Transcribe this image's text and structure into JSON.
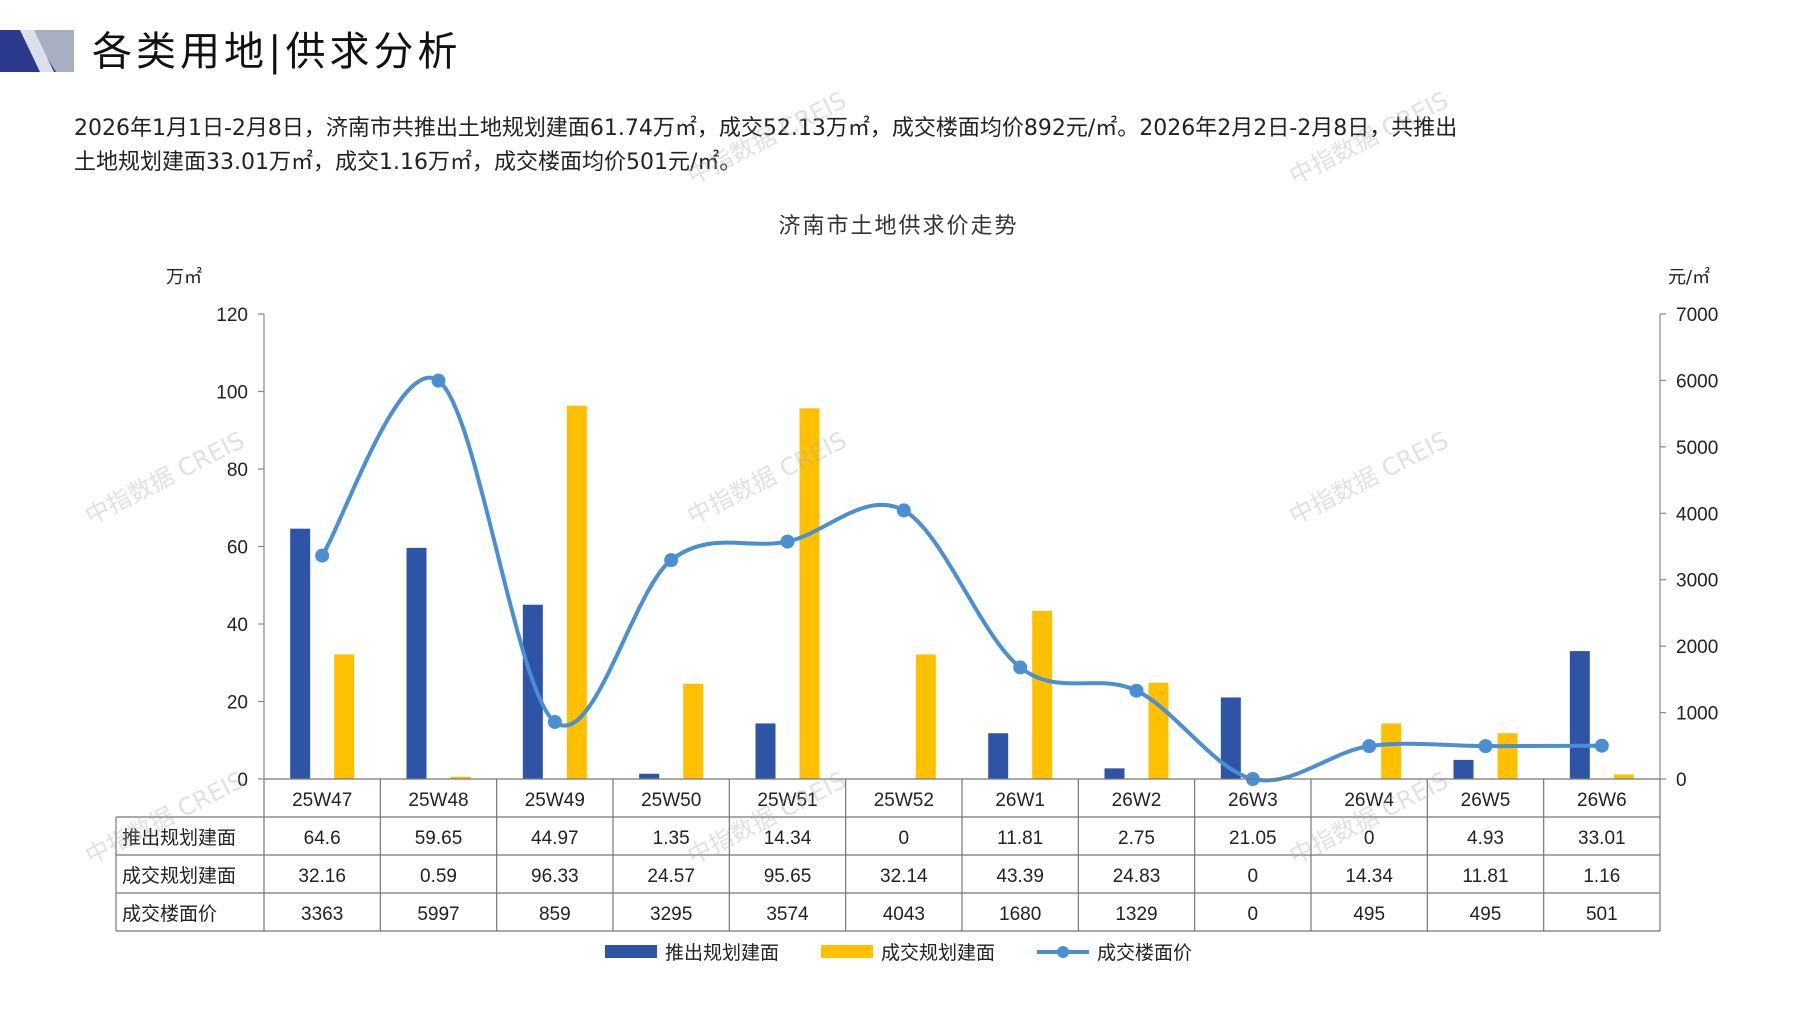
{
  "header": {
    "title": "各类用地|供求分析"
  },
  "summary": {
    "line1": "2026年1月1日-2月8日，济南市共推出土地规划建面61.74万㎡，成交52.13万㎡，成交楼面均价892元/㎡。2026年2月2日-2月8日，共推出",
    "line2": "土地规划建面33.01万㎡，成交1.16万㎡，成交楼面均价501元/㎡。"
  },
  "watermark": "中指数据 CREIS",
  "colors": {
    "supply": "#2E55A5",
    "deal": "#FFC000",
    "price": "#4A8FD4",
    "logo_dark": "#2B3A8C",
    "logo_light": "#A9AFC2"
  },
  "chart_data": {
    "type": "bar",
    "title": "济南市土地供求价走势",
    "left_unit": "万㎡",
    "right_unit": "元/㎡",
    "categories": [
      "25W47",
      "25W48",
      "25W49",
      "25W50",
      "25W51",
      "25W52",
      "26W1",
      "26W2",
      "26W3",
      "26W4",
      "26W5",
      "26W6"
    ],
    "ylim_left": [
      0,
      120
    ],
    "ylim_right": [
      0,
      7000
    ],
    "yticks_left": [
      0,
      20,
      40,
      60,
      80,
      100,
      120
    ],
    "yticks_right": [
      0,
      1000,
      2000,
      3000,
      4000,
      5000,
      6000,
      7000
    ],
    "legend_position": "bottom",
    "series": [
      {
        "name": "推出规划建面",
        "type": "bar",
        "axis": "left",
        "values": [
          64.6,
          59.65,
          44.97,
          1.35,
          14.34,
          0,
          11.81,
          2.75,
          21.05,
          0,
          4.93,
          33.01
        ],
        "labels": [
          "64.6",
          "59.65",
          "44.97",
          "1.35",
          "14.34",
          "0",
          "11.81",
          "2.75",
          "21.05",
          "0",
          "4.93",
          "33.01"
        ]
      },
      {
        "name": "成交规划建面",
        "type": "bar",
        "axis": "left",
        "values": [
          32.16,
          0.59,
          96.33,
          24.57,
          95.65,
          32.14,
          43.39,
          24.83,
          0,
          14.34,
          11.81,
          1.16
        ],
        "labels": [
          "32.16",
          "0.59",
          "96.33",
          "24.57",
          "95.65",
          "32.14",
          "43.39",
          "24.83",
          "0",
          "14.34",
          "11.81",
          "1.16"
        ]
      },
      {
        "name": "成交楼面价",
        "type": "line",
        "axis": "right",
        "values": [
          3363,
          5997,
          859,
          3295,
          3574,
          4043,
          1680,
          1329,
          0,
          495,
          495,
          501
        ],
        "labels": [
          "3363",
          "5997",
          "859",
          "3295",
          "3574",
          "4043",
          "1680",
          "1329",
          "0",
          "495",
          "495",
          "501"
        ]
      }
    ]
  }
}
